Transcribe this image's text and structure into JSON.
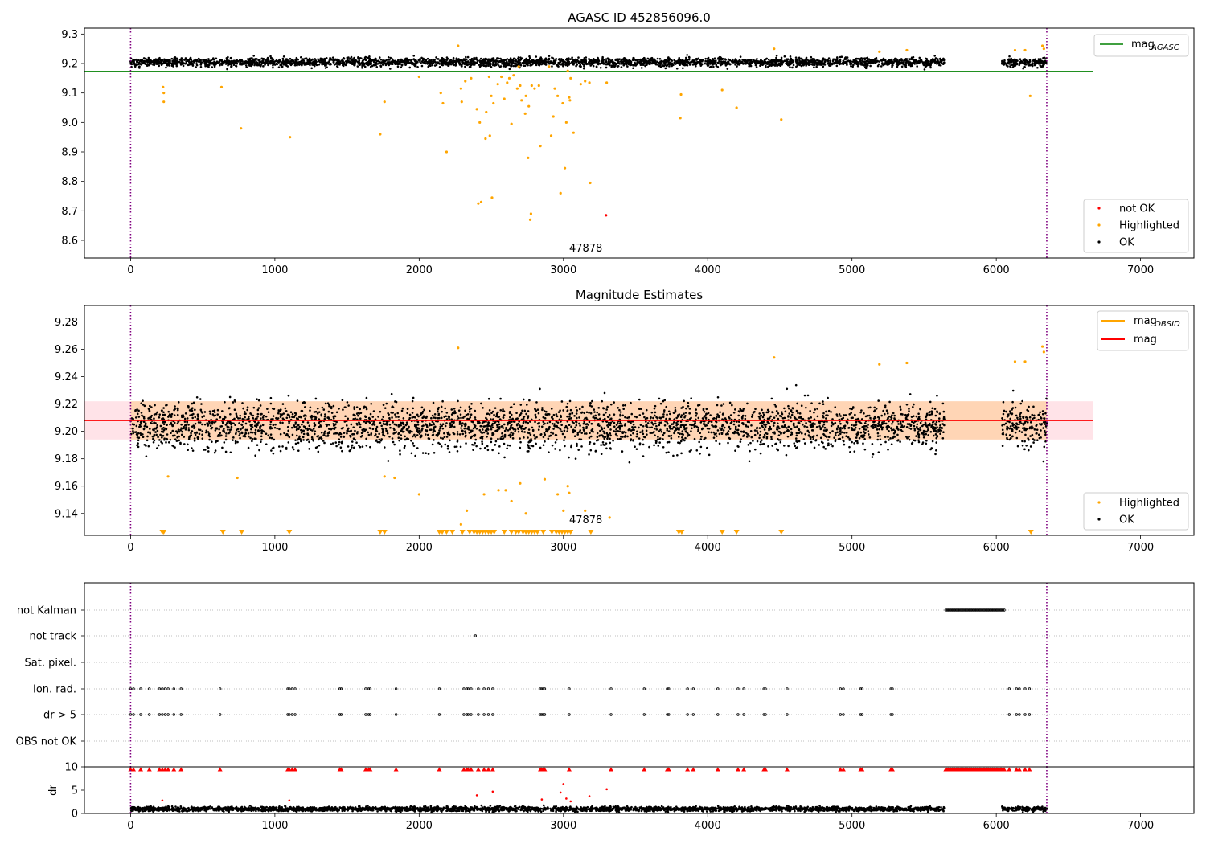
{
  "chart_data": [
    {
      "type": "scatter",
      "title": "AGASC ID 452856096.0",
      "xlabel": "",
      "ylabel": "",
      "xlim": [
        -320,
        7370
      ],
      "ylim": [
        8.54,
        9.32
      ],
      "xticks": [
        0,
        1000,
        2000,
        3000,
        4000,
        5000,
        6000,
        7000
      ],
      "yticks": [
        8.6,
        8.7,
        8.8,
        8.9,
        9.0,
        9.1,
        9.2,
        9.3
      ],
      "grid": false,
      "vlines": [
        0,
        6350
      ],
      "hline": {
        "name": "mag_AGASC",
        "y": 9.173,
        "x_range": [
          -320,
          6670
        ]
      },
      "legends": [
        {
          "placement": "upper right",
          "entries": [
            {
              "label": "mag",
              "sub": "AGASC",
              "color": "#008000",
              "kind": "line"
            }
          ]
        },
        {
          "placement": "lower right",
          "entries": [
            {
              "label": "not OK",
              "color": "#ff0000",
              "kind": "dot"
            },
            {
              "label": "Highlighted",
              "color": "#ffa500",
              "kind": "dot"
            },
            {
              "label": "OK",
              "color": "#000000",
              "kind": "dot"
            }
          ]
        }
      ],
      "annotation": {
        "text": "47878",
        "x": 3040,
        "y": 8.575
      },
      "series": [
        {
          "name": "OK",
          "color": "#000000",
          "band": {
            "x_segments": [
              [
                0,
                5640
              ],
              [
                6040,
                6350
              ]
            ],
            "y_center": 9.205,
            "y_half": 0.02
          }
        },
        {
          "name": "Highlighted",
          "color": "#ffa500",
          "points": [
            [
              225,
              9.12
            ],
            [
              230,
              9.1
            ],
            [
              230,
              9.07
            ],
            [
              630,
              9.12
            ],
            [
              765,
              8.98
            ],
            [
              1105,
              8.95
            ],
            [
              1730,
              8.96
            ],
            [
              1760,
              9.07
            ],
            [
              2000,
              9.155
            ],
            [
              2150,
              9.1
            ],
            [
              2165,
              9.065
            ],
            [
              2190,
              8.9
            ],
            [
              2270,
              9.26
            ],
            [
              2290,
              9.115
            ],
            [
              2295,
              9.07
            ],
            [
              2320,
              9.14
            ],
            [
              2360,
              9.15
            ],
            [
              2400,
              9.045
            ],
            [
              2410,
              8.725
            ],
            [
              2420,
              9.0
            ],
            [
              2430,
              8.73
            ],
            [
              2460,
              8.945
            ],
            [
              2465,
              9.035
            ],
            [
              2485,
              9.155
            ],
            [
              2490,
              8.955
            ],
            [
              2500,
              9.09
            ],
            [
              2505,
              8.745
            ],
            [
              2515,
              9.065
            ],
            [
              2545,
              9.13
            ],
            [
              2570,
              9.155
            ],
            [
              2590,
              9.08
            ],
            [
              2610,
              9.135
            ],
            [
              2625,
              9.15
            ],
            [
              2640,
              8.995
            ],
            [
              2655,
              9.16
            ],
            [
              2680,
              9.115
            ],
            [
              2690,
              9.19
            ],
            [
              2700,
              9.125
            ],
            [
              2710,
              9.075
            ],
            [
              2735,
              9.03
            ],
            [
              2740,
              9.09
            ],
            [
              2755,
              8.88
            ],
            [
              2760,
              9.055
            ],
            [
              2770,
              8.67
            ],
            [
              2775,
              8.69
            ],
            [
              2780,
              9.125
            ],
            [
              2800,
              9.115
            ],
            [
              2830,
              9.125
            ],
            [
              2840,
              8.92
            ],
            [
              2900,
              9.19
            ],
            [
              2915,
              8.955
            ],
            [
              2930,
              9.02
            ],
            [
              2940,
              9.115
            ],
            [
              2960,
              9.09
            ],
            [
              2980,
              8.76
            ],
            [
              2995,
              9.065
            ],
            [
              3010,
              8.845
            ],
            [
              3020,
              9.0
            ],
            [
              3030,
              9.175
            ],
            [
              3040,
              9.085
            ],
            [
              3045,
              9.075
            ],
            [
              3050,
              9.15
            ],
            [
              3070,
              8.965
            ],
            [
              3120,
              9.13
            ],
            [
              3150,
              9.14
            ],
            [
              3180,
              9.135
            ],
            [
              3185,
              8.795
            ],
            [
              3300,
              9.135
            ],
            [
              3810,
              9.015
            ],
            [
              3815,
              9.095
            ],
            [
              4100,
              9.11
            ],
            [
              4200,
              9.05
            ],
            [
              4460,
              9.25
            ],
            [
              4510,
              9.01
            ],
            [
              5190,
              9.24
            ],
            [
              5380,
              9.245
            ],
            [
              6130,
              9.245
            ],
            [
              6200,
              9.245
            ],
            [
              6235,
              9.09
            ],
            [
              6320,
              9.26
            ],
            [
              6330,
              9.25
            ]
          ]
        },
        {
          "name": "not OK",
          "color": "#ff0000",
          "points": [
            [
              3295,
              8.685
            ]
          ]
        }
      ]
    },
    {
      "type": "scatter",
      "title": "Magnitude Estimates",
      "xlabel": "",
      "ylabel": "",
      "xlim": [
        -320,
        7370
      ],
      "ylim": [
        9.124,
        9.292
      ],
      "xticks": [
        0,
        1000,
        2000,
        3000,
        4000,
        5000,
        6000,
        7000
      ],
      "yticks": [
        9.14,
        9.16,
        9.18,
        9.2,
        9.22,
        9.24,
        9.26,
        9.28
      ],
      "grid": false,
      "vlines": [
        0,
        6350
      ],
      "hline": {
        "name": "mag",
        "y": 9.208,
        "x_range": [
          -320,
          6670
        ]
      },
      "error_band": {
        "y_low": 9.194,
        "y_high": 9.222,
        "x_range": [
          -320,
          6670
        ]
      },
      "legends": [
        {
          "placement": "upper right",
          "entries": [
            {
              "label": "mag",
              "sub": "OBSID",
              "color": "#ffa500",
              "kind": "line"
            },
            {
              "label": "mag",
              "sub": "",
              "color": "#ff0000",
              "kind": "line"
            }
          ]
        },
        {
          "placement": "lower right",
          "entries": [
            {
              "label": "Highlighted",
              "color": "#ffa500",
              "kind": "dot"
            },
            {
              "label": "OK",
              "color": "#000000",
              "kind": "dot"
            }
          ]
        }
      ],
      "annotation": {
        "text": "47878",
        "x": 3040,
        "y": 9.128
      },
      "series": [
        {
          "name": "OK",
          "color": "#000000",
          "band": {
            "x_segments": [
              [
                0,
                5640
              ],
              [
                6040,
                6350
              ]
            ],
            "y_center": 9.205,
            "y_half": 0.022
          }
        },
        {
          "name": "Highlighted",
          "color": "#ffa500",
          "points": [
            [
              260,
              9.167
            ],
            [
              740,
              9.166
            ],
            [
              1760,
              9.167
            ],
            [
              1830,
              9.166
            ],
            [
              2000,
              9.154
            ],
            [
              2270,
              9.261
            ],
            [
              2290,
              9.132
            ],
            [
              2330,
              9.142
            ],
            [
              2450,
              9.154
            ],
            [
              2550,
              9.157
            ],
            [
              2600,
              9.157
            ],
            [
              2640,
              9.149
            ],
            [
              2700,
              9.162
            ],
            [
              2740,
              9.14
            ],
            [
              2870,
              9.165
            ],
            [
              2960,
              9.154
            ],
            [
              3000,
              9.142
            ],
            [
              3030,
              9.16
            ],
            [
              3040,
              9.155
            ],
            [
              3150,
              9.142
            ],
            [
              3320,
              9.137
            ],
            [
              4460,
              9.254
            ],
            [
              5190,
              9.249
            ],
            [
              5380,
              9.25
            ],
            [
              6130,
              9.251
            ],
            [
              6200,
              9.251
            ],
            [
              6320,
              9.262
            ],
            [
              6330,
              9.258
            ]
          ]
        },
        {
          "name": "Highlighted (below axis)",
          "color": "#ffa500",
          "marker": "triangle-down",
          "y": 9.124,
          "x": [
            220,
            230,
            640,
            770,
            1100,
            1730,
            1760,
            2140,
            2160,
            2190,
            2230,
            2300,
            2350,
            2380,
            2400,
            2420,
            2440,
            2460,
            2480,
            2500,
            2520,
            2590,
            2640,
            2670,
            2690,
            2720,
            2740,
            2760,
            2780,
            2800,
            2820,
            2860,
            2920,
            2950,
            2970,
            2990,
            3010,
            3030,
            3050,
            3190,
            3800,
            3820,
            4100,
            4200,
            4510,
            6240
          ]
        }
      ]
    },
    {
      "type": "scatter",
      "title": "",
      "xlabel": "",
      "ylabel": "",
      "xlim": [
        -320,
        7370
      ],
      "xticks": [
        0,
        1000,
        2000,
        3000,
        4000,
        5000,
        6000,
        7000
      ],
      "categories": [
        "not Kalman",
        "not track",
        "Sat. pixel.",
        "Ion. rad.",
        "dr > 5",
        "OBS not OK"
      ],
      "grid": "dotted horizontal",
      "vlines": [
        0,
        6350
      ],
      "flags": {
        "not Kalman": {
          "range": [
            5650,
            6060
          ]
        },
        "not track": {
          "x": [
            2390
          ]
        },
        "Sat. pixel.": {
          "x": []
        },
        "Ion. rad.": {
          "x": [
            0,
            20,
            70,
            130,
            200,
            220,
            240,
            260,
            300,
            350,
            620,
            1090,
            1100,
            1120,
            1140,
            1450,
            1460,
            1630,
            1650,
            1660,
            1840,
            2140,
            2310,
            2330,
            2340,
            2360,
            2410,
            2450,
            2480,
            2510,
            2840,
            2850,
            2860,
            2870,
            3040,
            3330,
            3560,
            3720,
            3730,
            3860,
            3900,
            4070,
            4210,
            4250,
            4390,
            4400,
            4550,
            4920,
            4940,
            5060,
            5070,
            5270,
            5280,
            6090,
            6140,
            6160,
            6200,
            6230
          ]
        },
        "dr > 5": {
          "x": [
            0,
            20,
            70,
            130,
            200,
            220,
            240,
            260,
            300,
            350,
            620,
            1090,
            1100,
            1120,
            1140,
            1450,
            1460,
            1630,
            1650,
            1660,
            1840,
            2140,
            2310,
            2330,
            2340,
            2360,
            2410,
            2450,
            2480,
            2510,
            2840,
            2850,
            2860,
            2870,
            3040,
            3330,
            3560,
            3720,
            3730,
            3860,
            3900,
            4070,
            4210,
            4250,
            4390,
            4400,
            4550,
            4920,
            4940,
            5060,
            5070,
            5270,
            5280,
            6090,
            6140,
            6160,
            6200,
            6230
          ]
        },
        "OBS not OK": {
          "x": []
        }
      }
    },
    {
      "type": "scatter",
      "title": "",
      "xlabel": "",
      "ylabel": "dr",
      "xlim": [
        -320,
        7370
      ],
      "ylim": [
        0,
        10
      ],
      "yticks": [
        0,
        5,
        10
      ],
      "grid": false,
      "vlines": [
        0,
        6350
      ],
      "series": [
        {
          "name": "OK",
          "color": "#000000",
          "band": {
            "x_segments": [
              [
                0,
                5640
              ],
              [
                6040,
                6350
              ]
            ],
            "y_center": 1.0,
            "y_half": 0.7
          }
        },
        {
          "name": "large dr",
          "color": "#ff0000",
          "points": [
            [
              220,
              2.8
            ],
            [
              1100,
              2.8
            ],
            [
              2400,
              3.9
            ],
            [
              2510,
              4.7
            ],
            [
              2850,
              3.0
            ],
            [
              2980,
              4.5
            ],
            [
              3000,
              6.3
            ],
            [
              3020,
              3.2
            ],
            [
              3050,
              2.6
            ],
            [
              3180,
              3.7
            ],
            [
              3300,
              5.2
            ]
          ]
        },
        {
          "name": "capped",
          "color": "#ff0000",
          "marker": "triangle-up",
          "y": 10,
          "x": [
            0,
            20,
            70,
            130,
            200,
            220,
            240,
            260,
            300,
            350,
            620,
            1090,
            1100,
            1120,
            1140,
            1450,
            1460,
            1630,
            1650,
            1660,
            1840,
            2140,
            2310,
            2330,
            2340,
            2360,
            2410,
            2450,
            2480,
            2510,
            2840,
            2850,
            2860,
            2870,
            3040,
            3330,
            3560,
            3720,
            3730,
            3860,
            3900,
            4070,
            4210,
            4250,
            4390,
            4400,
            4550,
            4920,
            4940,
            5060,
            5070,
            5270,
            5280,
            6090,
            6140,
            6160,
            6200,
            6230
          ]
        },
        {
          "name": "capped range",
          "color": "#ff0000",
          "marker": "triangle-up",
          "y": 10,
          "range": [
            5650,
            6060
          ]
        }
      ]
    }
  ]
}
